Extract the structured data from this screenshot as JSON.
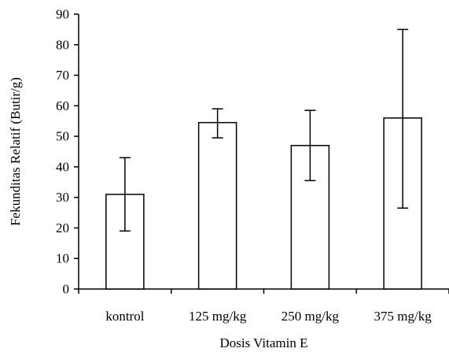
{
  "chart_data": {
    "type": "bar",
    "title": "",
    "xlabel": "Dosis Vitamin E",
    "ylabel": "Fekunditas Relatif (Butir/g)",
    "categories": [
      "kontrol",
      "125 mg/kg",
      "250 mg/kg",
      "375 mg/kg"
    ],
    "values": [
      31,
      54.5,
      47,
      56
    ],
    "error_bars": [
      {
        "low": 19,
        "high": 43
      },
      {
        "low": 49.5,
        "high": 59
      },
      {
        "low": 35.5,
        "high": 58.5
      },
      {
        "low": 26.5,
        "high": 85
      }
    ],
    "ylim": [
      0,
      90
    ],
    "yticks": [
      0,
      10,
      20,
      30,
      40,
      50,
      60,
      70,
      80,
      90
    ],
    "grid": false,
    "legend": "none",
    "colors": {
      "bar_fill": "#ffffff",
      "bar_stroke": "#000000",
      "axis": "#000000",
      "error_bar": "#000000"
    }
  }
}
